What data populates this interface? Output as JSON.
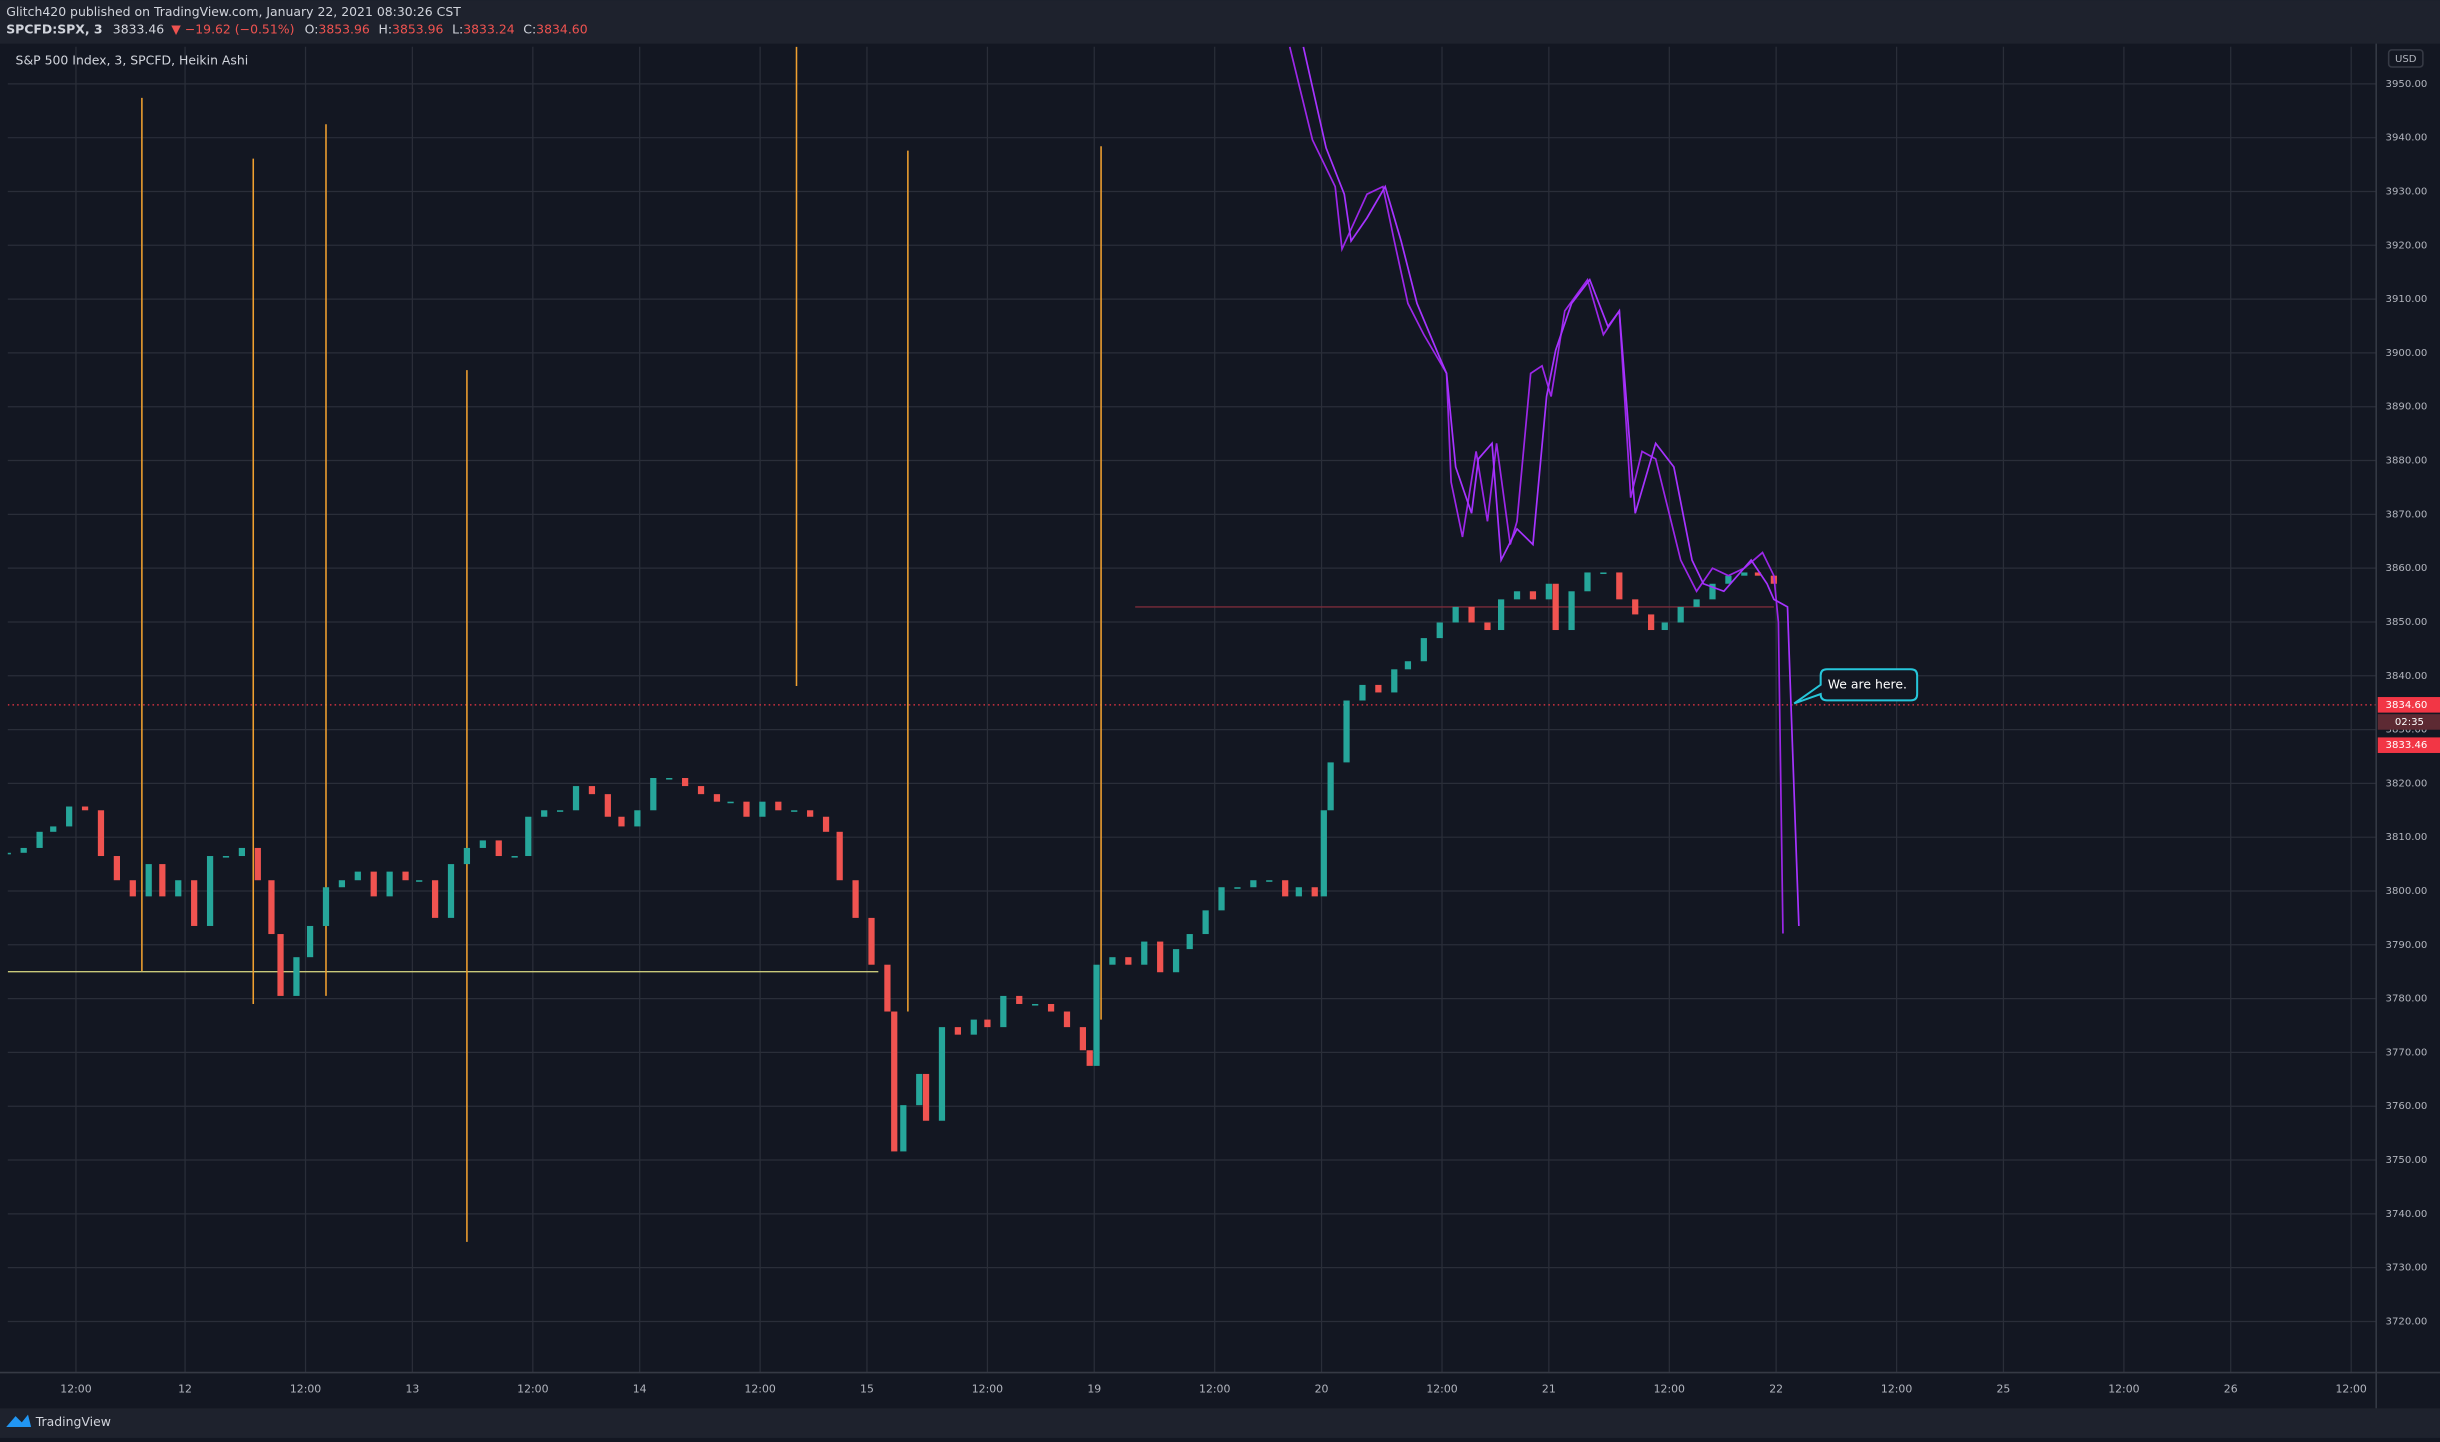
{
  "header": {
    "publisher": "Glitch420 published on TradingView.com, January 22, 2021 08:30:26 CST",
    "symbol": "SPCFD:SPX, 3",
    "last": "3833.46",
    "change": "▼ −19.62 (−0.51%)",
    "quote": [
      {
        "label": "O:",
        "value": "3853.96"
      },
      {
        "label": "H:",
        "value": "3853.96"
      },
      {
        "label": "L:",
        "value": "3833.24"
      },
      {
        "label": "C:",
        "value": "3834.60"
      }
    ]
  },
  "footer": {
    "brand": "TradingView"
  },
  "chart_data": {
    "type": "candlestick",
    "title": "S&P 500 Index, 3, SPCFD, Heikin Ashi",
    "currency": "USD",
    "xlim": [
      0.22,
      10.64
    ],
    "ylim": [
      3710.5,
      3956.9
    ],
    "grid": true,
    "up_color": "#26a69a",
    "down_color": "#ef5350",
    "xticks": [
      {
        "value": 0.52,
        "label": "12:00"
      },
      {
        "value": 1,
        "label": "12"
      },
      {
        "value": 1.53,
        "label": "12:00"
      },
      {
        "value": 2,
        "label": "13"
      },
      {
        "value": 2.53,
        "label": "12:00"
      },
      {
        "value": 3,
        "label": "14"
      },
      {
        "value": 3.53,
        "label": "12:00"
      },
      {
        "value": 4,
        "label": "15"
      },
      {
        "value": 4.53,
        "label": "12:00"
      },
      {
        "value": 5,
        "label": "19"
      },
      {
        "value": 5.53,
        "label": "12:00"
      },
      {
        "value": 6,
        "label": "20"
      },
      {
        "value": 6.53,
        "label": "12:00"
      },
      {
        "value": 7,
        "label": "21"
      },
      {
        "value": 7.53,
        "label": "12:00"
      },
      {
        "value": 8,
        "label": "22"
      },
      {
        "value": 8.53,
        "label": "12:00"
      },
      {
        "value": 9,
        "label": "25"
      },
      {
        "value": 9.53,
        "label": "12:00"
      },
      {
        "value": 10,
        "label": "26"
      },
      {
        "value": 10.53,
        "label": "12:00"
      }
    ],
    "yticks": [
      {
        "value": 3720,
        "label": "3720.00"
      },
      {
        "value": 3730,
        "label": "3730.00"
      },
      {
        "value": 3740,
        "label": "3740.00"
      },
      {
        "value": 3750,
        "label": "3750.00"
      },
      {
        "value": 3760,
        "label": "3760.00"
      },
      {
        "value": 3770,
        "label": "3770.00"
      },
      {
        "value": 3780,
        "label": "3780.00"
      },
      {
        "value": 3790,
        "label": "3790.00"
      },
      {
        "value": 3800,
        "label": "3800.00"
      },
      {
        "value": 3810,
        "label": "3810.00"
      },
      {
        "value": 3820,
        "label": "3820.00"
      },
      {
        "value": 3830,
        "label": "3830.00"
      },
      {
        "value": 3840,
        "label": "3840.00"
      },
      {
        "value": 3850,
        "label": "3850.00"
      },
      {
        "value": 3860,
        "label": "3860.00"
      },
      {
        "value": 3870,
        "label": "3870.00"
      },
      {
        "value": 3880,
        "label": "3880.00"
      },
      {
        "value": 3890,
        "label": "3890.00"
      },
      {
        "value": 3900,
        "label": "3900.00"
      },
      {
        "value": 3910,
        "label": "3910.00"
      },
      {
        "value": 3920,
        "label": "3920.00"
      },
      {
        "value": 3930,
        "label": "3930.00"
      },
      {
        "value": 3940,
        "label": "3940.00"
      },
      {
        "value": 3950,
        "label": "3950.00"
      }
    ],
    "price": {
      "x": [
        0.22,
        0.29,
        0.36,
        0.42,
        0.49,
        0.56,
        0.63,
        0.7,
        0.77,
        0.84,
        0.9,
        0.97,
        1.04,
        1.11,
        1.18,
        1.25,
        1.32,
        1.38,
        1.42,
        1.49,
        1.55,
        1.62,
        1.69,
        1.76,
        1.83,
        1.9,
        1.97,
        2.03,
        2.1,
        2.17,
        2.24,
        2.31,
        2.38,
        2.45,
        2.51,
        2.58,
        2.65,
        2.72,
        2.79,
        2.86,
        2.92,
        2.99,
        3.06,
        3.13,
        3.2,
        3.27,
        3.34,
        3.4,
        3.47,
        3.54,
        3.61,
        3.68,
        3.75,
        3.82,
        3.88,
        3.95,
        4.02,
        4.09,
        4.12,
        4.16,
        4.23,
        4.26,
        4.33,
        4.4,
        4.47,
        4.53,
        4.6,
        4.67,
        4.74,
        4.81,
        4.88,
        4.95,
        4.98,
        5.01,
        5.08,
        5.15,
        5.22,
        5.29,
        5.36,
        5.42,
        5.49,
        5.56,
        5.63,
        5.7,
        5.77,
        5.84,
        5.9,
        5.97,
        6.01,
        6.04,
        6.11,
        6.18,
        6.25,
        6.32,
        6.38,
        6.45,
        6.52,
        6.59,
        6.66,
        6.73,
        6.79,
        6.86,
        6.93,
        7.0,
        7.03,
        7.1,
        7.17,
        7.24,
        7.31,
        7.38,
        7.45,
        7.51,
        7.58,
        7.65,
        7.72,
        7.79,
        7.86,
        7.92,
        7.99
      ],
      "values": [
        3807.1,
        3808,
        3811,
        3812,
        3815.7,
        3815,
        3806.5,
        3802,
        3799,
        3805,
        3799,
        3802,
        3793.5,
        3806.5,
        3806.5,
        3808,
        3802,
        3792,
        3780.5,
        3787.7,
        3793.5,
        3800.7,
        3802,
        3803.6,
        3799,
        3803.6,
        3802,
        3802,
        3795,
        3805,
        3808,
        3809.4,
        3806.5,
        3806.5,
        3813.8,
        3815,
        3815,
        3819.5,
        3818,
        3813.8,
        3812,
        3815,
        3821,
        3821,
        3819.5,
        3818,
        3816.6,
        3816.6,
        3813.8,
        3816.6,
        3815,
        3815,
        3813.8,
        3811,
        3802,
        3795,
        3786.3,
        3777.6,
        3751.6,
        3760.2,
        3766,
        3757.3,
        3774.7,
        3773.3,
        3776.1,
        3774.7,
        3780.5,
        3779,
        3779,
        3777.6,
        3774.7,
        3770.4,
        3767.5,
        3786.3,
        3787.7,
        3786.3,
        3790.6,
        3784.9,
        3789.2,
        3792,
        3796.4,
        3800.7,
        3800.7,
        3802,
        3802,
        3799,
        3800.7,
        3799,
        3815,
        3823.9,
        3835.4,
        3838.3,
        3836.9,
        3841.2,
        3842.7,
        3847,
        3849.9,
        3852.8,
        3849.9,
        3848.5,
        3854.2,
        3855.7,
        3854.2,
        3857.1,
        3848.5,
        3855.7,
        3859.2,
        3859.2,
        3854.2,
        3851.4,
        3848.5,
        3849.9,
        3852.8,
        3854.2,
        3857.1,
        3858.6,
        3859.2,
        3858.6,
        3857.1
      ]
    },
    "series": [
      {
        "color": "#9c27e8",
        "x": [
          5.86,
          5.96,
          6.06,
          6.09,
          6.2,
          6.27,
          6.32,
          6.38,
          6.45,
          6.55,
          6.57,
          6.62,
          6.68,
          6.73,
          6.77,
          6.83,
          6.86,
          6.92,
          6.97,
          7.01,
          7.07,
          7.17,
          7.24,
          7.31,
          7.36,
          7.41,
          7.47,
          7.58,
          7.65,
          7.72,
          7.79,
          7.86,
          7.94,
          7.99,
          8.01,
          8.03
        ],
        "values": [
          3956.9,
          3939.6,
          3930.9,
          3919.3,
          3929.5,
          3930.9,
          3920.8,
          3909.2,
          3903.4,
          3896.2,
          3876.0,
          3865.8,
          3881.7,
          3868.7,
          3883.2,
          3864.4,
          3868.7,
          3896.2,
          3897.6,
          3891.9,
          3907.8,
          3913.6,
          3903.4,
          3907.8,
          3873.1,
          3881.7,
          3880.3,
          3861.5,
          3855.7,
          3860.0,
          3858.6,
          3860.0,
          3862.9,
          3858.6,
          3849.9,
          3792.1
        ]
      },
      {
        "color": "#a633ff",
        "x": [
          5.92,
          6.02,
          6.1,
          6.13,
          6.2,
          6.28,
          6.35,
          6.42,
          6.52,
          6.55,
          6.59,
          6.66,
          6.69,
          6.75,
          6.79,
          6.86,
          6.93,
          6.99,
          7.03,
          7.1,
          7.18,
          7.26,
          7.31,
          7.38,
          7.47,
          7.55,
          7.63,
          7.68,
          7.77,
          7.89,
          7.96,
          7.99,
          8.05,
          8.1
        ],
        "values": [
          3956.9,
          3938.1,
          3929.5,
          3920.8,
          3925.1,
          3930.9,
          3920.8,
          3909.2,
          3899.1,
          3896.2,
          3878.8,
          3870.2,
          3880.3,
          3883.2,
          3861.5,
          3867.3,
          3864.4,
          3891.9,
          3900.5,
          3909.2,
          3913.6,
          3904.9,
          3907.8,
          3870.2,
          3883.2,
          3878.8,
          3861.5,
          3857.1,
          3855.7,
          3861.5,
          3857.1,
          3854.2,
          3852.8,
          3793.5
        ]
      }
    ],
    "vlines": {
      "color": "#f0a030",
      "x": [
        0.81,
        1.3,
        1.62,
        2.24,
        3.69,
        4.18,
        5.03
      ],
      "top": [
        3947.4,
        3936.1,
        3942.5,
        3896.8,
        3956.9,
        3937.6,
        3938.4
      ],
      "bottom": [
        3785.1,
        3779.0,
        3780.5,
        3734.8,
        3838.1,
        3777.6,
        3776.1
      ]
    },
    "hlines": [
      {
        "value": 3785,
        "from": 0.22,
        "to": 4.05,
        "color": "#c8c87a"
      },
      {
        "value": 3852.8,
        "from": 5.18,
        "to": 7.99,
        "color": "#7a2b3a"
      }
    ],
    "last_price": {
      "value": 3834.6,
      "label": "3834.60",
      "color": "#f23645"
    },
    "countdown": "02:35",
    "close_price": {
      "value": 3833.46,
      "label": "3833.46"
    },
    "annotation": {
      "text": "We are here.",
      "value": 3834.9,
      "x": 8.08
    }
  }
}
